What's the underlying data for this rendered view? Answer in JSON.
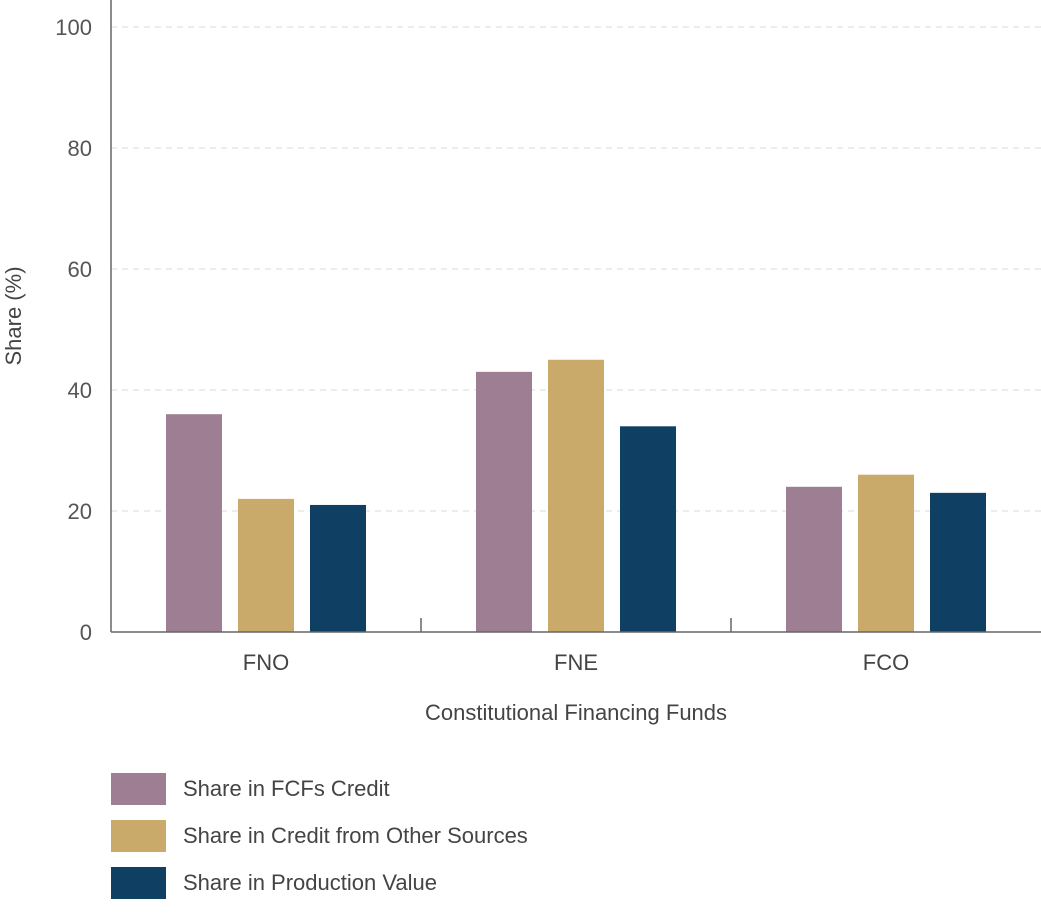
{
  "chart_data": {
    "type": "bar",
    "title": "",
    "xlabel": "Constitutional Financing Funds",
    "ylabel": "Share (%)",
    "ylim": [
      0,
      100
    ],
    "yticks": [
      0,
      20,
      40,
      60,
      80,
      100
    ],
    "grid": true,
    "legend_position": "bottom-left",
    "categories": [
      "FNO",
      "FNE",
      "FCO"
    ],
    "series": [
      {
        "name": "Share in FCFs Credit",
        "color": "#9e7e93",
        "values": [
          36,
          43,
          24
        ]
      },
      {
        "name": "Share in Credit from Other Sources",
        "color": "#c9aa6b",
        "values": [
          22,
          45,
          26
        ]
      },
      {
        "name": "Share in Production Value",
        "color": "#0f3f63",
        "values": [
          21,
          34,
          23
        ]
      }
    ]
  }
}
